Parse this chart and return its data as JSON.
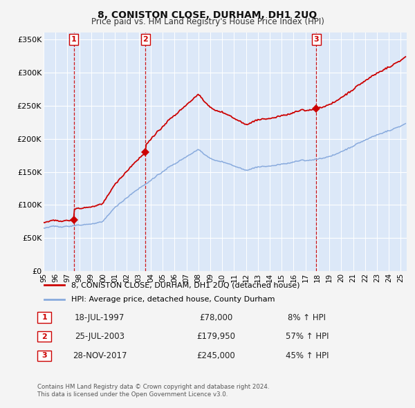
{
  "title": "8, CONISTON CLOSE, DURHAM, DH1 2UQ",
  "subtitle": "Price paid vs. HM Land Registry's House Price Index (HPI)",
  "xlim": [
    1995.0,
    2025.5
  ],
  "ylim": [
    0,
    360000
  ],
  "yticks": [
    0,
    50000,
    100000,
    150000,
    200000,
    250000,
    300000,
    350000
  ],
  "ytick_labels": [
    "£0",
    "£50K",
    "£100K",
    "£150K",
    "£200K",
    "£250K",
    "£300K",
    "£350K"
  ],
  "fig_bg_color": "#f4f4f4",
  "plot_bg_color": "#dce8f8",
  "grid_color": "#ffffff",
  "sale_color": "#cc0000",
  "hpi_color": "#88aadd",
  "transaction1": {
    "date_label": "18-JUL-1997",
    "date_num": 1997.54,
    "price": 78000,
    "pct": "8%",
    "label": "1"
  },
  "transaction2": {
    "date_label": "25-JUL-2003",
    "date_num": 2003.56,
    "price": 179950,
    "pct": "57%",
    "label": "2"
  },
  "transaction3": {
    "date_label": "28-NOV-2017",
    "date_num": 2017.91,
    "price": 245000,
    "pct": "45%",
    "label": "3"
  },
  "legend_sale_label": "8, CONISTON CLOSE, DURHAM, DH1 2UQ (detached house)",
  "legend_hpi_label": "HPI: Average price, detached house, County Durham",
  "footer1": "Contains HM Land Registry data © Crown copyright and database right 2024.",
  "footer2": "This data is licensed under the Open Government Licence v3.0."
}
